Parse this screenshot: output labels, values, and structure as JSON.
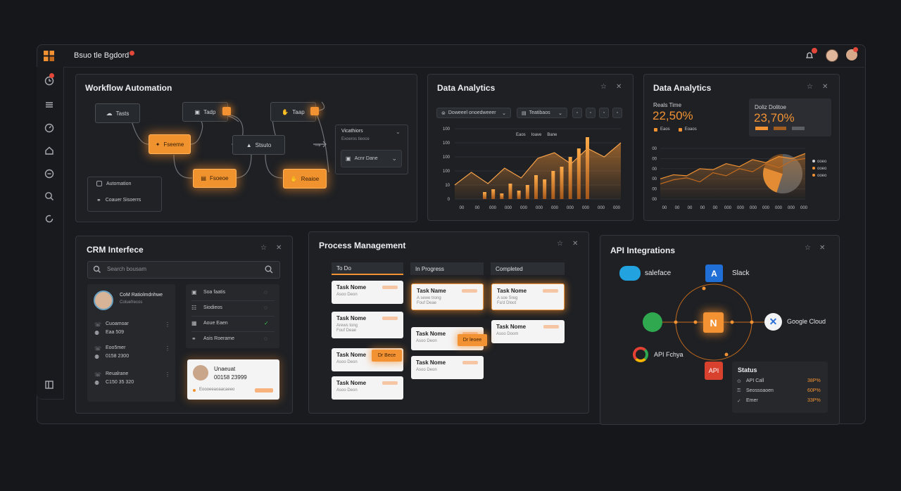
{
  "header": {
    "title": "Bsuo tle Bgdord"
  },
  "workflow": {
    "title": "Workflow Automation",
    "nodes": {
      "tasts": "Tasts",
      "tadp": "Tadp",
      "taap": "Taap",
      "fseeme": "Fseeme",
      "stsuto": "Stsuto",
      "fsoeoe": "Fsoeoe",
      "reaioe": "Reaioe",
      "automation": "Automation",
      "coauev": "Coauer Sisoerrs"
    },
    "side": {
      "title": "Vicathiors",
      "sub": "Exoeros tieoce",
      "select": "Acnr Dane"
    }
  },
  "analytics1": {
    "title": "Data Analytics",
    "filter1": "Doweeel onoedweeer",
    "filter2": "Teatibaos",
    "legend": [
      "Eaos",
      "Ioave",
      "Bane"
    ]
  },
  "analytics2": {
    "title": "Data Analytics",
    "box1": {
      "label": "Reals Time",
      "value": "22,50%",
      "l1": "Eaos",
      "l2": "Eoaos"
    },
    "box2": {
      "label": "Doliz Dolitoe",
      "value": "23,70%"
    }
  },
  "chart_data": [
    {
      "type": "bar",
      "yticks": [
        "100",
        "100",
        "100",
        "100",
        "10",
        "0"
      ],
      "xticks": [
        "00",
        "00",
        "000",
        "000",
        "000",
        "000",
        "000",
        "000",
        "000",
        "000",
        "000"
      ],
      "values": [
        10,
        14,
        8,
        22,
        12,
        20,
        34,
        28,
        40,
        46,
        60,
        72,
        88
      ],
      "series": [
        {
          "values": [
            20,
            38,
            22,
            44,
            30,
            58,
            66,
            50,
            72,
            60,
            80
          ]
        }
      ]
    },
    {
      "type": "area",
      "yticks": [
        "00",
        "00",
        "00",
        "00",
        "00",
        "00"
      ],
      "xticks": [
        "00",
        "00",
        "00",
        "00",
        "00",
        "000",
        "000",
        "000",
        "000",
        "000",
        "000",
        "000"
      ],
      "series": [
        {
          "values": [
            40,
            48,
            46,
            60,
            58,
            70,
            64,
            78,
            72,
            84,
            80,
            90
          ]
        },
        {
          "values": [
            30,
            38,
            42,
            34,
            52,
            46,
            60,
            54,
            70,
            62,
            76,
            80
          ]
        }
      ],
      "pie": [
        55,
        25,
        20
      ],
      "legend": [
        "ooeo",
        "ooeo",
        "ooeo"
      ]
    }
  ],
  "crm": {
    "title": "CRM Interfece",
    "search": "Search bousam",
    "profile": {
      "name": "CoM Ratiolmdnhwe",
      "sub": "Cotuefrecos"
    },
    "contacts": [
      {
        "a": "Cuoamoar",
        "b": "Eaa 509"
      },
      {
        "a": "Eoo5mer",
        "b": "0158 2300"
      },
      {
        "a": "Reualrane",
        "b": "C150 35 320"
      }
    ],
    "list": [
      "Soa faatis",
      "Siodieos",
      "Aoue Eaen",
      "Asis Roerame"
    ],
    "card": {
      "name": "Unaeuat",
      "phone": "00158 23999",
      "sub": "Eoooeeaoaacaeeo"
    }
  },
  "process": {
    "title": "Process Management",
    "cols": [
      "To Do",
      "In Progress",
      "Completed"
    ],
    "todo": [
      {
        "t": "Task Nome",
        "s": "Asoo Deon"
      },
      {
        "t": "Task Nome",
        "s": "Arews tong",
        "s2": "Fouf Deae"
      },
      {
        "t": "Task Nome",
        "s": "Asoo Deon"
      },
      {
        "t": "Task Nome",
        "s": "Asoo Deon"
      }
    ],
    "prog": [
      {
        "t": "Task Name",
        "s": "A sewe trong",
        "s2": "Fouf Deae"
      },
      {
        "t": "Task Nome",
        "s": "Asoo Deon"
      },
      {
        "t": "Task Nome",
        "s": "Asoo Deon"
      }
    ],
    "done": [
      {
        "t": "Task Nome",
        "s": "A soe Sreg",
        "s2": "Fa'd Dloot"
      },
      {
        "t": "Task Nome",
        "s": "Asoo Doom"
      }
    ],
    "tag1": "Dr Bece",
    "tag2": "Dr leoee"
  },
  "api": {
    "title": "API Integrations",
    "salesforce": "saleface",
    "slack": "Slack",
    "google": "Google Cloud",
    "apichya": "API Fchya",
    "api": "API",
    "status": {
      "title": "Status",
      "rows": [
        {
          "k": "API Call",
          "v": "38P%"
        },
        {
          "k": "Seossoaoen",
          "v": "60P%"
        },
        {
          "k": "Emer",
          "v": "33P%"
        }
      ]
    }
  },
  "colors": {
    "accent": "#f29233",
    "bg": "#15171b",
    "panel": "#1e2024"
  }
}
